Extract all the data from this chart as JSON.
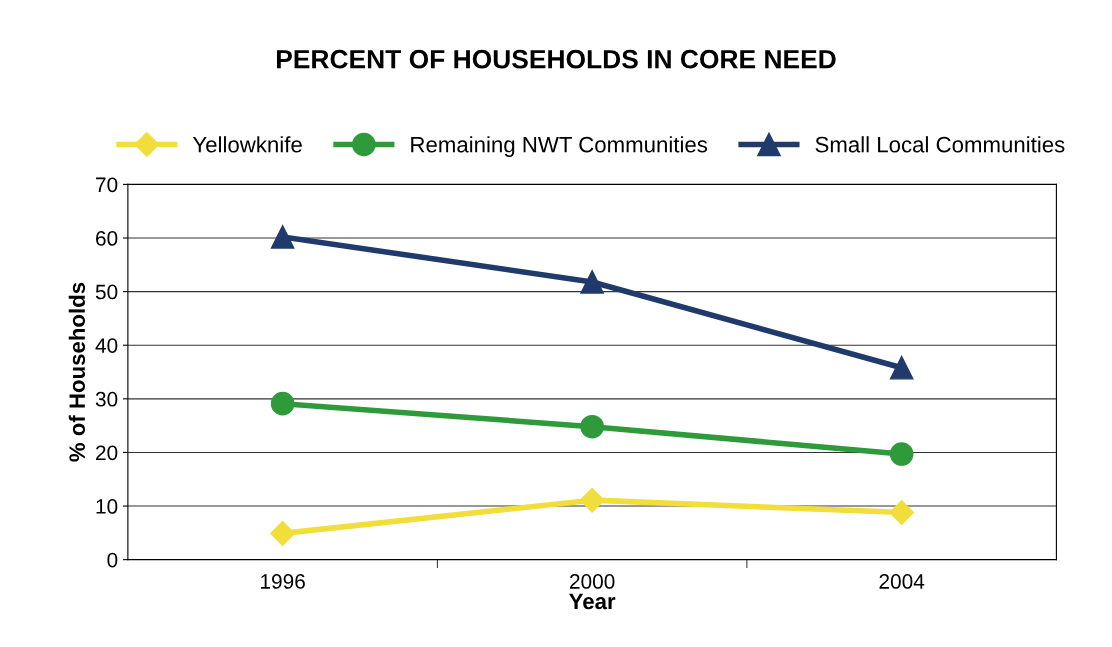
{
  "chart_data": {
    "type": "line",
    "title": "PERCENT OF HOUSEHOLDS IN CORE NEED",
    "xlabel": "Year",
    "ylabel": "% of Households",
    "categories": [
      "1996",
      "2000",
      "2004"
    ],
    "series": [
      {
        "name": "Yellowknife",
        "color": "#f2de3a",
        "marker": "diamond",
        "values": [
          4.9,
          11.1,
          8.8
        ]
      },
      {
        "name": "Remaining NWT Communities",
        "color": "#2e9a3a",
        "marker": "circle",
        "values": [
          29.1,
          24.8,
          19.7
        ]
      },
      {
        "name": "Small Local Communities",
        "color": "#1f3a6b",
        "marker": "triangle",
        "values": [
          60.2,
          51.8,
          35.8
        ]
      }
    ],
    "ylim": [
      0,
      70
    ],
    "yticks": [
      0,
      10,
      20,
      30,
      40,
      50,
      60,
      70
    ],
    "grid": "y",
    "legend": "top",
    "line_style": "solid"
  }
}
